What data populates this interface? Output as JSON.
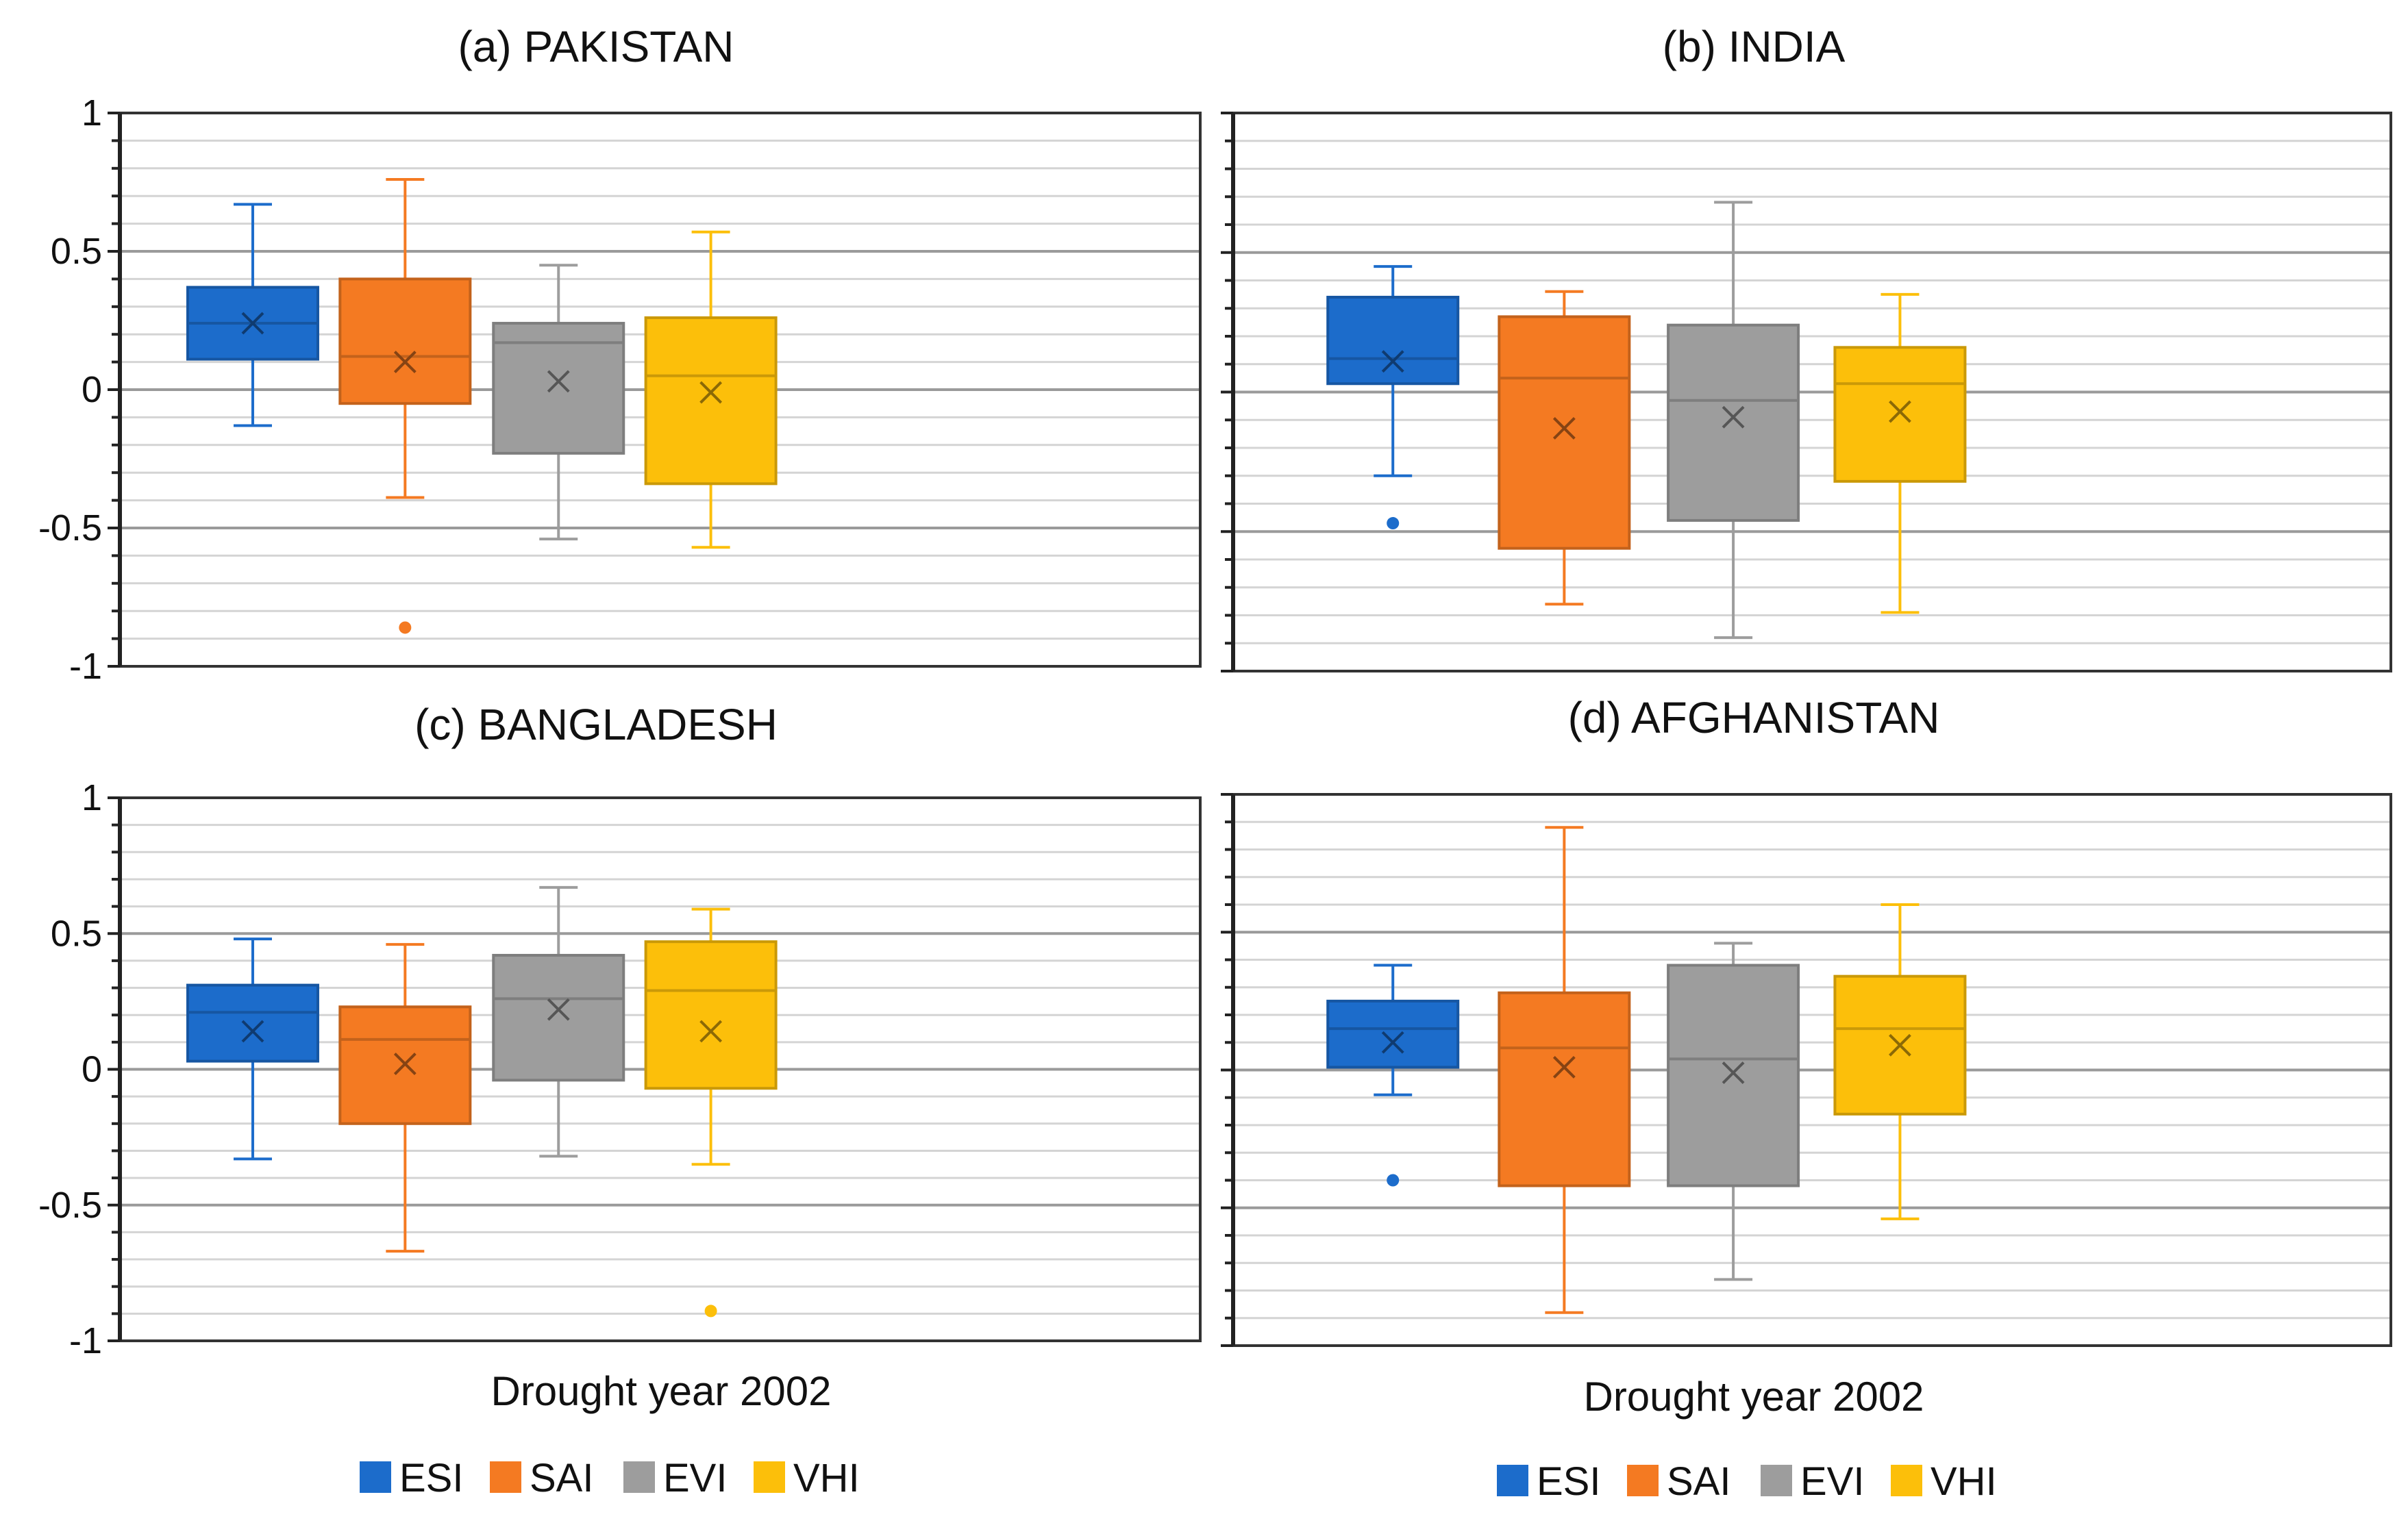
{
  "colors": {
    "ESI": "#1c6ccb",
    "SAI": "#f47a22",
    "EVI": "#9d9d9d",
    "VHI": "#fcbf0a",
    "grid_major": "#9a9a9a",
    "grid_minor": "#d4d4d4"
  },
  "chart_data": [
    {
      "type": "box",
      "title": "(a) PAKISTAN",
      "ylim": [
        -1,
        1
      ],
      "yticks": [
        "1",
        "0.5",
        "0",
        "-0.5",
        "-1"
      ],
      "xlabel": "",
      "legend": [],
      "series": [
        {
          "name": "ESI",
          "min": -0.13,
          "q1": 0.11,
          "median": 0.24,
          "q3": 0.37,
          "max": 0.67,
          "mean": 0.24,
          "outliers": []
        },
        {
          "name": "SAI",
          "min": -0.39,
          "q1": -0.05,
          "median": 0.12,
          "q3": 0.4,
          "max": 0.76,
          "mean": 0.1,
          "outliers": [
            -0.86
          ]
        },
        {
          "name": "EVI",
          "min": -0.54,
          "q1": -0.23,
          "median": 0.17,
          "q3": 0.24,
          "max": 0.45,
          "mean": 0.03,
          "outliers": []
        },
        {
          "name": "VHI",
          "min": -0.57,
          "q1": -0.34,
          "median": 0.05,
          "q3": 0.26,
          "max": 0.57,
          "mean": -0.01,
          "outliers": []
        }
      ]
    },
    {
      "type": "box",
      "title": "(b) INDIA",
      "ylim": [
        -1,
        1
      ],
      "yticks": [],
      "xlabel": "",
      "legend": [],
      "series": [
        {
          "name": "ESI",
          "min": -0.3,
          "q1": 0.03,
          "median": 0.12,
          "q3": 0.34,
          "max": 0.45,
          "mean": 0.11,
          "outliers": [
            -0.47
          ]
        },
        {
          "name": "SAI",
          "min": -0.76,
          "q1": -0.56,
          "median": 0.05,
          "q3": 0.27,
          "max": 0.36,
          "mean": -0.13,
          "outliers": []
        },
        {
          "name": "EVI",
          "min": -0.88,
          "q1": -0.46,
          "median": -0.03,
          "q3": 0.24,
          "max": 0.68,
          "mean": -0.09,
          "outliers": []
        },
        {
          "name": "VHI",
          "min": -0.79,
          "q1": -0.32,
          "median": 0.03,
          "q3": 0.16,
          "max": 0.35,
          "mean": -0.07,
          "outliers": []
        }
      ]
    },
    {
      "type": "box",
      "title": "(c) BANGLADESH",
      "ylim": [
        -1,
        1
      ],
      "yticks": [
        "1",
        "0.5",
        "0",
        "-0.5",
        "-1"
      ],
      "xlabel": "Drought year 2002",
      "legend": [
        "ESI",
        "SAI",
        "EVI",
        "VHI"
      ],
      "series": [
        {
          "name": "ESI",
          "min": -0.33,
          "q1": 0.03,
          "median": 0.21,
          "q3": 0.31,
          "max": 0.48,
          "mean": 0.14,
          "outliers": []
        },
        {
          "name": "SAI",
          "min": -0.67,
          "q1": -0.2,
          "median": 0.11,
          "q3": 0.23,
          "max": 0.46,
          "mean": 0.02,
          "outliers": []
        },
        {
          "name": "EVI",
          "min": -0.32,
          "q1": -0.04,
          "median": 0.26,
          "q3": 0.42,
          "max": 0.67,
          "mean": 0.22,
          "outliers": []
        },
        {
          "name": "VHI",
          "min": -0.35,
          "q1": -0.07,
          "median": 0.29,
          "q3": 0.47,
          "max": 0.59,
          "mean": 0.14,
          "outliers": [
            -0.89
          ]
        }
      ]
    },
    {
      "type": "box",
      "title": "(d) AFGHANISTAN",
      "ylim": [
        -1,
        1
      ],
      "yticks": [],
      "xlabel": "Drought year 2002",
      "legend": [
        "ESI",
        "SAI",
        "EVI",
        "VHI"
      ],
      "series": [
        {
          "name": "ESI",
          "min": -0.09,
          "q1": 0.01,
          "median": 0.15,
          "q3": 0.25,
          "max": 0.38,
          "mean": 0.1,
          "outliers": [
            -0.4
          ]
        },
        {
          "name": "SAI",
          "min": -0.88,
          "q1": -0.42,
          "median": 0.08,
          "q3": 0.28,
          "max": 0.88,
          "mean": 0.01,
          "outliers": []
        },
        {
          "name": "EVI",
          "min": -0.76,
          "q1": -0.42,
          "median": 0.04,
          "q3": 0.38,
          "max": 0.46,
          "mean": -0.01,
          "outliers": []
        },
        {
          "name": "VHI",
          "min": -0.54,
          "q1": -0.16,
          "median": 0.15,
          "q3": 0.34,
          "max": 0.6,
          "mean": 0.09,
          "outliers": []
        }
      ]
    }
  ]
}
